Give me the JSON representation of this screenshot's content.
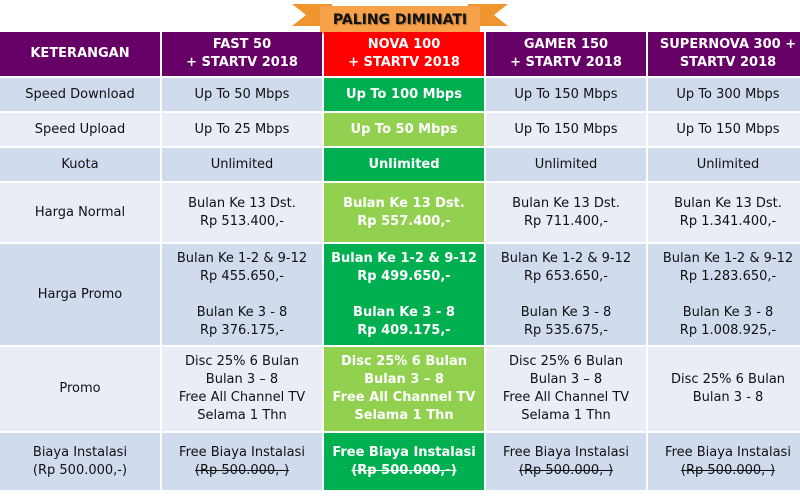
{
  "badge": "PALING DIMINATI",
  "colors": {
    "header": "#660066",
    "highlight_header": "#ff0000",
    "green": "#00b050",
    "light_green": "#92d050",
    "row_dark": "#d0dbee",
    "row_light": "#e9edf5",
    "ribbon": "#f7a24a"
  },
  "headers": [
    "KETERANGAN",
    [
      "FAST 50",
      "+ STARTV 2018"
    ],
    [
      "NOVA 100",
      "+ STARTV 2018"
    ],
    [
      "GAMER 150",
      "+ STARTV 2018"
    ],
    [
      "SUPERNOVA 300 +",
      "STARTV 2018"
    ]
  ],
  "rows": [
    {
      "label": [
        "Speed Download"
      ],
      "cells": [
        [
          "Up To 50 Mbps"
        ],
        [
          "Up To 100 Mbps"
        ],
        [
          "Up To 150 Mbps"
        ],
        [
          "Up To 300 Mbps"
        ]
      ]
    },
    {
      "label": [
        "Speed Upload"
      ],
      "cells": [
        [
          "Up To 25 Mbps"
        ],
        [
          "Up To 50 Mbps"
        ],
        [
          "Up To 150 Mbps"
        ],
        [
          "Up To 150 Mbps"
        ]
      ]
    },
    {
      "label": [
        "Kuota"
      ],
      "cells": [
        [
          "Unlimited"
        ],
        [
          "Unlimited"
        ],
        [
          "Unlimited"
        ],
        [
          "Unlimited"
        ]
      ]
    },
    {
      "label": [
        "Harga Normal"
      ],
      "cells": [
        [
          "Bulan Ke 13 Dst.",
          "Rp 513.400,-"
        ],
        [
          "Bulan Ke 13 Dst.",
          "Rp 557.400,-"
        ],
        [
          "Bulan Ke 13 Dst.",
          "Rp 711.400,-"
        ],
        [
          "Bulan Ke 13 Dst.",
          "Rp 1.341.400,-"
        ]
      ]
    },
    {
      "label": [
        "Harga Promo"
      ],
      "cells": [
        [
          "Bulan Ke 1-2 & 9-12",
          "Rp 455.650,-",
          "",
          "Bulan Ke 3 - 8",
          "Rp 376.175,-"
        ],
        [
          "Bulan Ke 1-2 & 9-12",
          "Rp 499.650,-",
          "",
          "Bulan Ke 3 - 8",
          "Rp 409.175,-"
        ],
        [
          "Bulan Ke 1-2 & 9-12",
          "Rp 653.650,-",
          "",
          "Bulan Ke 3 - 8",
          "Rp 535.675,-"
        ],
        [
          "Bulan Ke 1-2 & 9-12",
          "Rp 1.283.650,-",
          "",
          "Bulan Ke 3 - 8",
          "Rp 1.008.925,-"
        ]
      ]
    },
    {
      "label": [
        "Promo"
      ],
      "cells": [
        [
          "Disc 25% 6 Bulan",
          "Bulan 3 – 8",
          "Free All Channel TV",
          "Selama 1 Thn"
        ],
        [
          "Disc 25% 6 Bulan",
          "Bulan 3 – 8",
          "Free All Channel TV",
          "Selama 1 Thn"
        ],
        [
          "Disc 25% 6 Bulan",
          "Bulan 3 – 8",
          "Free All Channel TV",
          "Selama 1 Thn"
        ],
        [
          "Disc 25% 6 Bulan",
          "Bulan 3 - 8"
        ]
      ]
    },
    {
      "label": [
        "Biaya Instalasi",
        "(Rp 500.000,-)"
      ],
      "cells": [
        [
          "Free Biaya Instalasi",
          "(Rp 500.000,-)"
        ],
        [
          "Free Biaya Instalasi",
          "(Rp 500.000,-)"
        ],
        [
          "Free Biaya Instalasi",
          "(Rp 500.000,-)"
        ],
        [
          "Free Biaya Instalasi",
          "(Rp 500.000,-)"
        ]
      ],
      "strike_second_line": true
    }
  ]
}
